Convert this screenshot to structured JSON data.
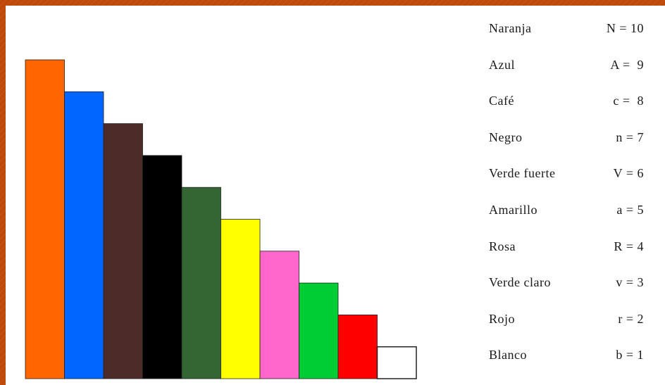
{
  "rods": [
    {
      "name": "Naranja",
      "value": 10,
      "code": "N = 10",
      "color": "#ff6600"
    },
    {
      "name": "Azul",
      "value": 9,
      "code": "A =  9",
      "color": "#0066ff"
    },
    {
      "name": "Café",
      "value": 8,
      "code": "c =  8",
      "color": "#4d2b28"
    },
    {
      "name": "Negro",
      "value": 7,
      "code": "n = 7",
      "color": "#000000"
    },
    {
      "name": "Verde fuerte",
      "value": 6,
      "code": "V = 6",
      "color": "#336633"
    },
    {
      "name": "Amarillo",
      "value": 5,
      "code": "a = 5",
      "color": "#ffff00"
    },
    {
      "name": "Rosa",
      "value": 4,
      "code": "R = 4",
      "color": "#ff66cc"
    },
    {
      "name": "Verde claro",
      "value": 3,
      "code": "v = 3",
      "color": "#00cc33"
    },
    {
      "name": "Rojo",
      "value": 2,
      "code": "r = 2",
      "color": "#ff0000"
    },
    {
      "name": "Blanco",
      "value": 1,
      "code": "b = 1",
      "color": "#ffffff"
    }
  ]
}
